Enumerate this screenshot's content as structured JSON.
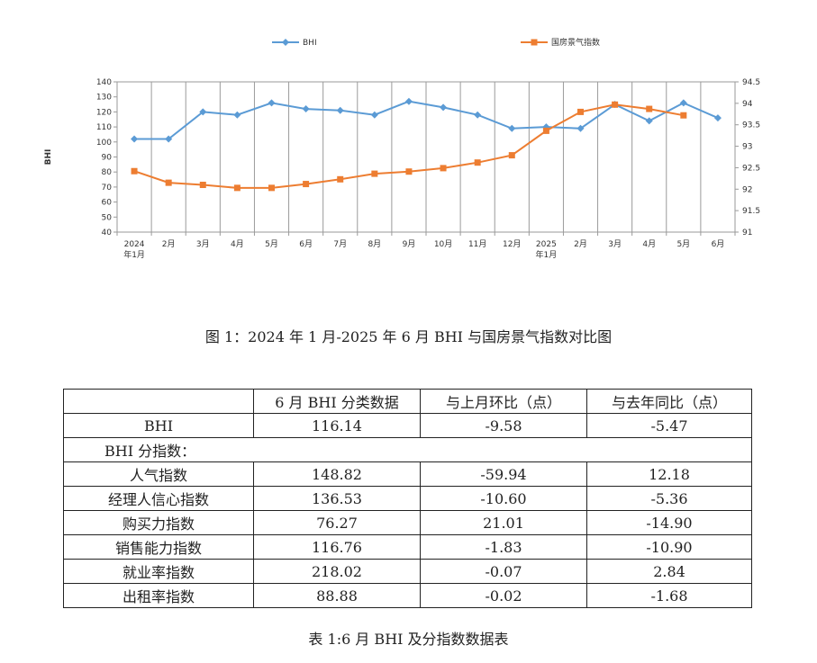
{
  "chart_data": {
    "type": "line",
    "categories": [
      "2024\n年1月",
      "2月",
      "3月",
      "4月",
      "5月",
      "6月",
      "7月",
      "8月",
      "9月",
      "10月",
      "11月",
      "12月",
      "2025\n年1月",
      "2月",
      "3月",
      "4月",
      "5月",
      "6月"
    ],
    "series": [
      {
        "name": "BHI",
        "axis": "left",
        "color": "#5b9bd5",
        "values": [
          102,
          102,
          120,
          118,
          126,
          122,
          121,
          118,
          127,
          123,
          118,
          109,
          110,
          109,
          125,
          114,
          126,
          116
        ]
      },
      {
        "name": "国房景气指数",
        "axis": "right",
        "color": "#ed7d31",
        "values": [
          92.42,
          92.15,
          92.1,
          92.03,
          92.03,
          92.12,
          92.23,
          92.36,
          92.41,
          92.49,
          92.62,
          92.79,
          93.36,
          93.8,
          93.97,
          93.87,
          93.72,
          null
        ]
      }
    ],
    "ylabel": "BHI",
    "ylim": [
      40,
      140
    ],
    "yticks": [
      40,
      50,
      60,
      70,
      80,
      90,
      100,
      110,
      120,
      130,
      140
    ],
    "y2lim": [
      91,
      94.5
    ],
    "y2ticks": [
      "91",
      "91.5",
      "92",
      "92.5",
      "93",
      "93.5",
      "94",
      "94.5"
    ],
    "grid": "vertical",
    "legend": "top"
  },
  "figure_caption": "图 1：2024 年 1 月-2025 年 6 月 BHI 与国房景气指数对比图",
  "table": {
    "headers": [
      "",
      "6 月 BHI 分类数据",
      "与上月环比（点）",
      "与去年同比（点）"
    ],
    "bhi_row": [
      "BHI",
      "116.14",
      "-9.58",
      "-5.47"
    ],
    "section_label": "BHI 分指数：",
    "rows": [
      [
        "人气指数",
        "148.82",
        "-59.94",
        "12.18"
      ],
      [
        "经理人信心指数",
        "136.53",
        "-10.60",
        "-5.36"
      ],
      [
        "购买力指数",
        "76.27",
        "21.01",
        "-14.90"
      ],
      [
        "销售能力指数",
        "116.76",
        "-1.83",
        "-10.90"
      ],
      [
        "就业率指数",
        "218.02",
        "-0.07",
        "2.84"
      ],
      [
        "出租率指数",
        "88.88",
        "-0.02",
        "-1.68"
      ]
    ]
  },
  "table_caption": "表 1:6 月 BHI 及分指数数据表"
}
